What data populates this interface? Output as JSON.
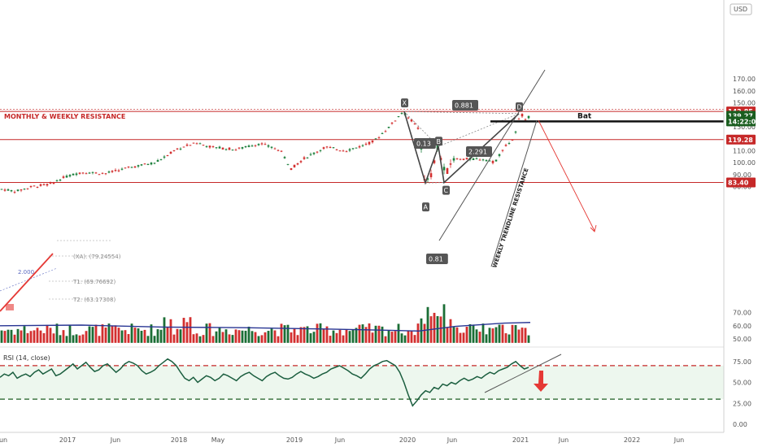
{
  "chart_data": {
    "type": "candlestick",
    "currency": "USD",
    "price_axis": {
      "ticks": [
        170,
        160,
        150,
        140,
        130,
        120,
        110,
        100,
        90,
        80
      ]
    },
    "volume_axis": {
      "ticks": [
        70,
        60,
        50
      ]
    },
    "rsi_axis": {
      "ticks": [
        "75.00",
        "50.00",
        "25.00",
        "0.00"
      ]
    },
    "x_ticks": [
      "un",
      "2017",
      "Jun",
      "2018",
      "May",
      "2019",
      "Jun",
      "2020",
      "Jun",
      "2021",
      "Jun",
      "2022",
      "Jun"
    ],
    "price_labels": [
      {
        "text": "142.85",
        "color": "#c62828"
      },
      {
        "text": "139.27",
        "color": "#1b5e20"
      },
      {
        "text": "14:22:04",
        "color": "#1b5e20"
      },
      {
        "text": "119.28",
        "color": "#c62828"
      },
      {
        "text": "83.40",
        "color": "#c62828"
      }
    ],
    "levels": [
      {
        "value": 142.85,
        "label": "MONTHLY & WEEKLY RESISTANCE",
        "color": "#c62828"
      },
      {
        "value": 119.28,
        "label": "",
        "color": "#c62828"
      },
      {
        "value": 83.4,
        "label": "",
        "color": "#c62828"
      }
    ],
    "harmonic": {
      "pattern_name": "Bat",
      "points": [
        {
          "name": "X",
          "value": 142.8
        },
        {
          "name": "A",
          "value": 83.0
        },
        {
          "name": "B",
          "value": 113.5
        },
        {
          "name": "C",
          "value": 83.3
        },
        {
          "name": "D",
          "value": 141.0
        }
      ],
      "ratios": [
        "0.881",
        "0.13",
        "2.291",
        "0.81"
      ]
    },
    "old_pattern_labels": [
      "(XA): (79.24554)",
      "T1: (69.76692)",
      "T2: (63.17308)",
      "2.000"
    ],
    "trendline_label": "WEEKLY TRENDLINE RESISTANCE",
    "rsi": {
      "label": "RSI (14, close)",
      "upper": 70,
      "lower": 30,
      "values": [
        56,
        60,
        58,
        62,
        55,
        58,
        60,
        57,
        62,
        65,
        60,
        63,
        66,
        58,
        60,
        64,
        68,
        72,
        66,
        70,
        74,
        68,
        63,
        65,
        70,
        72,
        67,
        62,
        66,
        72,
        75,
        73,
        70,
        64,
        60,
        62,
        65,
        70,
        74,
        78,
        75,
        70,
        62,
        55,
        52,
        56,
        50,
        54,
        58,
        56,
        52,
        55,
        60,
        58,
        55,
        52,
        57,
        60,
        62,
        58,
        55,
        52,
        57,
        60,
        62,
        58,
        55,
        54,
        56,
        60,
        63,
        60,
        58,
        55,
        57,
        60,
        62,
        66,
        68,
        70,
        67,
        64,
        60,
        58,
        55,
        60,
        66,
        70,
        72,
        75,
        76,
        73,
        70,
        62,
        50,
        35,
        22,
        28,
        35,
        40,
        38,
        44,
        42,
        48,
        46,
        50,
        48,
        52,
        55,
        52,
        54,
        57,
        55,
        59,
        62,
        60,
        64,
        66,
        68,
        72,
        75,
        70,
        66,
        68
      ]
    }
  }
}
